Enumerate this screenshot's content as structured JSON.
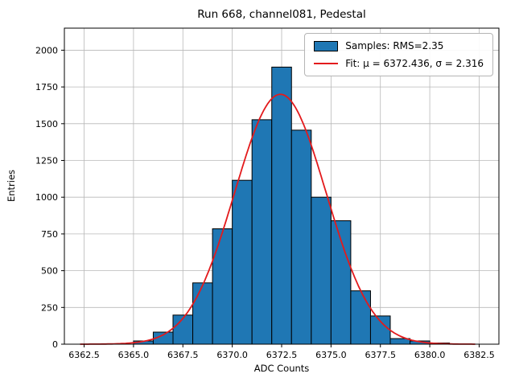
{
  "chart_data": {
    "type": "histogram",
    "title": "Run 668, channel081, Pedestal",
    "xlabel": "ADC Counts",
    "ylabel": "Entries",
    "xlim": [
      6361.5,
      6383.5
    ],
    "ylim": [
      0,
      2150
    ],
    "grid": true,
    "legend_position": "upper right",
    "xticks": [
      6362.5,
      6365.0,
      6367.5,
      6370.0,
      6372.5,
      6375.0,
      6377.5,
      6380.0,
      6382.5
    ],
    "xtick_labels": [
      "6362.5",
      "6365.0",
      "6367.5",
      "6370.0",
      "6372.5",
      "6375.0",
      "6377.5",
      "6380.0",
      "6382.5"
    ],
    "yticks": [
      0,
      250,
      500,
      750,
      1000,
      1250,
      1500,
      1750,
      2000
    ],
    "ytick_labels": [
      "0",
      "250",
      "500",
      "750",
      "1000",
      "1250",
      "1500",
      "1750",
      "2000"
    ],
    "bin_width": 1,
    "bin_left_edges": [
      6365,
      6366,
      6367,
      6368,
      6369,
      6370,
      6371,
      6372,
      6373,
      6374,
      6375,
      6376,
      6377,
      6378,
      6379,
      6380
    ],
    "bin_counts": [
      22,
      82,
      198,
      417,
      785,
      1115,
      1527,
      1885,
      1456,
      1000,
      840,
      363,
      192,
      38,
      22,
      8
    ],
    "fit": {
      "mu": 6372.436,
      "sigma": 2.316,
      "amplitude": 1700,
      "x_start": 6362.3,
      "x_end": 6382.3
    },
    "legend": [
      {
        "label": "Samples: RMS=2.35",
        "marker": "patch"
      },
      {
        "label": "Fit: μ = 6372.436, σ = 2.316",
        "marker": "line"
      }
    ],
    "colors": {
      "bar": "#1f77b4",
      "bar_edge": "#000000",
      "fit": "#e31a1c",
      "grid": "#b8b8b8",
      "spine": "#000000"
    }
  }
}
